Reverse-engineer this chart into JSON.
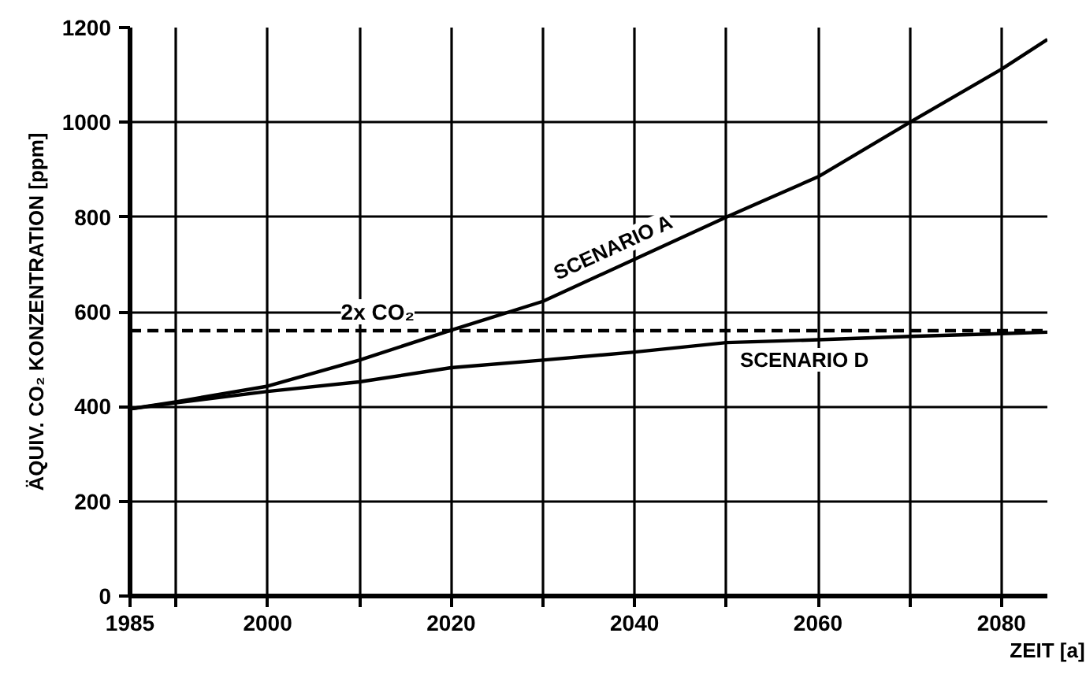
{
  "chart_data": {
    "type": "line",
    "xlabel": "ZEIT [a]",
    "ylabel": "ÄQUIV. CO₂ KONZENTRATION [ppm]",
    "x": [
      1985,
      1990,
      2000,
      2010,
      2020,
      2030,
      2040,
      2050,
      2060,
      2070,
      2080,
      2085
    ],
    "series": [
      {
        "name": "SCENARIO A",
        "color": "#000000",
        "values": [
          395,
          410,
          443,
          498,
          561,
          622,
          711,
          800,
          885,
          1000,
          1112,
          1175
        ]
      },
      {
        "name": "SCENARIO D",
        "color": "#000000",
        "values": [
          395,
          408,
          432,
          452,
          482,
          498,
          515,
          535,
          541,
          548,
          554,
          557
        ]
      }
    ],
    "xlim": [
      1985,
      2085
    ],
    "xticks": [
      1985,
      {
        "value": 1990,
        "label": null
      },
      2000,
      {
        "value": 2010,
        "label": null
      },
      2020,
      {
        "value": 2030,
        "label": null
      },
      2040,
      {
        "value": 2050,
        "label": null
      },
      2060,
      {
        "value": 2070,
        "label": null
      },
      2080
    ],
    "ylim": [
      0,
      1200
    ],
    "yticks": [
      0,
      200,
      400,
      600,
      800,
      1000,
      1200
    ],
    "ref_lines": [
      {
        "axis": "y",
        "value": 560,
        "label": "2x CO₂",
        "color": "#000000",
        "line_style": "dashed"
      }
    ],
    "grid": true,
    "line_style": "solid"
  }
}
